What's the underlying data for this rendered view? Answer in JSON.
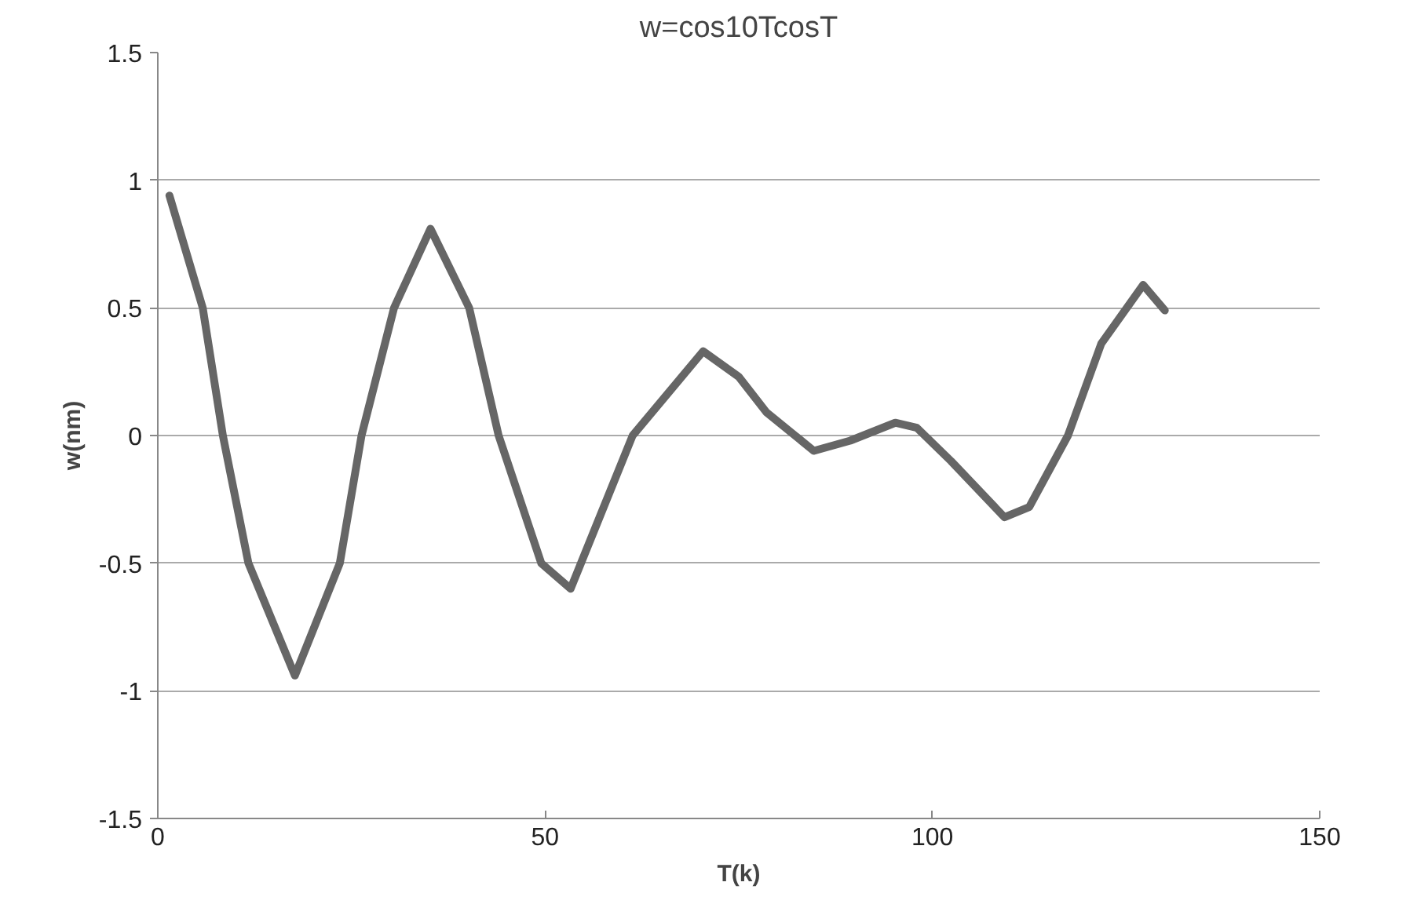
{
  "chart_data": {
    "type": "line",
    "title": "w=cos10TcosT",
    "xlabel": "T(k)",
    "ylabel": "w(nm)",
    "x": [
      1.5,
      5.8,
      8.4,
      11.7,
      17.7,
      23.5,
      26.3,
      30.5,
      35.2,
      40.2,
      44,
      49.5,
      53.3,
      61.3,
      70.4,
      75,
      78.6,
      84.7,
      89.4,
      95.2,
      98,
      102.4,
      109.3,
      112.5,
      117.5,
      121.8,
      127.2,
      130
    ],
    "series": [
      {
        "color": "#666666",
        "values": [
          0.94,
          0.5,
          0,
          -0.5,
          -0.94,
          -0.5,
          0,
          0.5,
          0.81,
          0.5,
          0,
          -0.5,
          -0.6,
          0,
          0.33,
          0.23,
          0.09,
          -0.06,
          -0.02,
          0.05,
          0.03,
          -0.1,
          -0.32,
          -0.28,
          0,
          0.36,
          0.59,
          0.49
        ]
      }
    ],
    "xlim": [
      0,
      150
    ],
    "xticks": [
      0,
      50,
      100,
      150
    ],
    "ylim": [
      -1.5,
      1.5
    ],
    "yticks": [
      -1.5,
      -1,
      -0.5,
      0,
      0.5,
      1,
      1.5
    ],
    "grid": "y",
    "marker": "none",
    "line_style": "solid"
  }
}
